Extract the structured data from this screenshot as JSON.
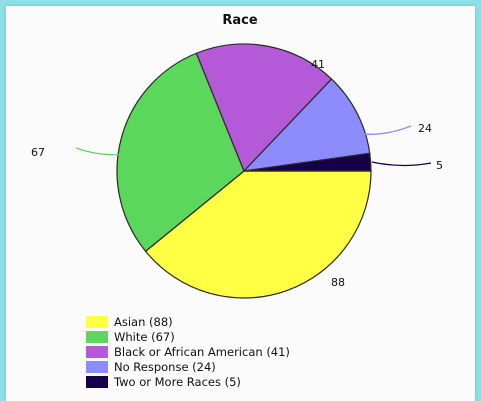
{
  "chart_data": {
    "type": "pie",
    "title": "Race",
    "slices": [
      {
        "label": "Asian (88)",
        "value": 88,
        "data_label": "88",
        "color": "#ffff44"
      },
      {
        "label": "White (67)",
        "value": 67,
        "data_label": "67",
        "color": "#5bd85b"
      },
      {
        "label": "Black or African American (41)",
        "value": 41,
        "data_label": "41",
        "color": "#b45ad8"
      },
      {
        "label": "No Response (24)",
        "value": 24,
        "data_label": "24",
        "color": "#8c8cff"
      },
      {
        "label": "Two or More Races (5)",
        "value": 5,
        "data_label": "5",
        "color": "#16004a"
      }
    ],
    "legend_position": "bottom-left"
  }
}
